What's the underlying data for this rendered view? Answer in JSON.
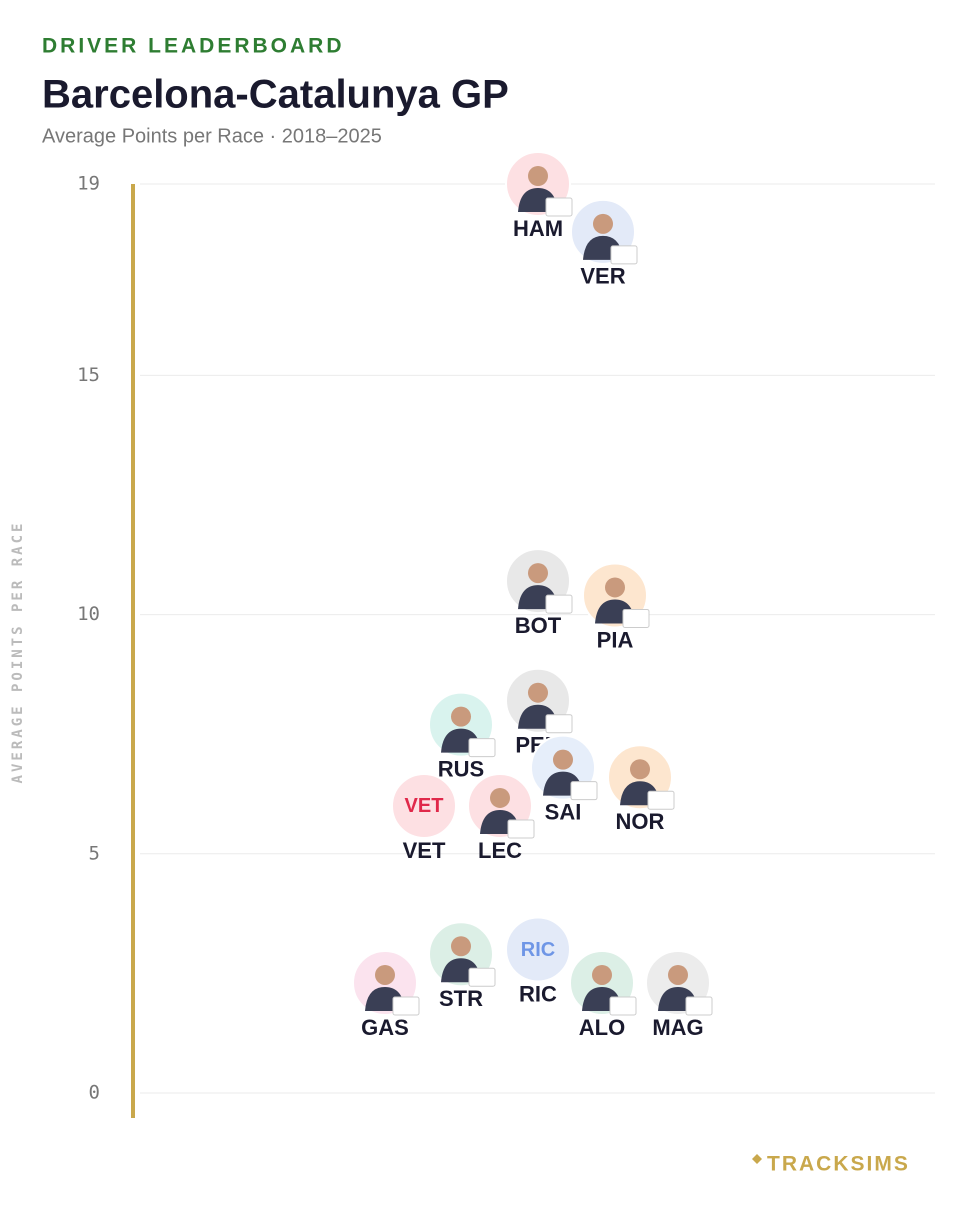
{
  "chart_data": {
    "type": "beeswarm",
    "eyebrow": "DRIVER LEADERBOARD",
    "title": "Barcelona-Catalunya GP",
    "subtitle": "Average Points per Race · 2018–2025",
    "y_label": "AVERAGE POINTS PER RACE",
    "brand": "TRACKSIMS",
    "categories": [
      "HAM",
      "VER",
      "BOT",
      "PIA",
      "PER",
      "RUS",
      "SAI",
      "NOR",
      "VET",
      "LEC",
      "RIC",
      "STR",
      "ALO",
      "MAG",
      "GAS"
    ],
    "values": [
      19.0,
      18.0,
      10.7,
      10.4,
      8.2,
      7.7,
      6.8,
      6.6,
      6.0,
      6.0,
      3.0,
      2.9,
      2.3,
      2.3,
      2.3
    ],
    "colors": [
      "#fde0e3",
      "#e3eaf8",
      "#e8e8e8",
      "#fde6cf",
      "#e8e8e8",
      "#d9f3ee",
      "#e6eefa",
      "#fde6cf",
      "#fde0e3",
      "#fde0e3",
      "#e3eaf8",
      "#dcefe6",
      "#dcefe6",
      "#ececec",
      "#fbe3ee"
    ],
    "axis_color": "#c9a84c",
    "ylim": [
      0,
      19
    ],
    "yticks": [
      0,
      5,
      10,
      15,
      19
    ],
    "grid": true
  }
}
